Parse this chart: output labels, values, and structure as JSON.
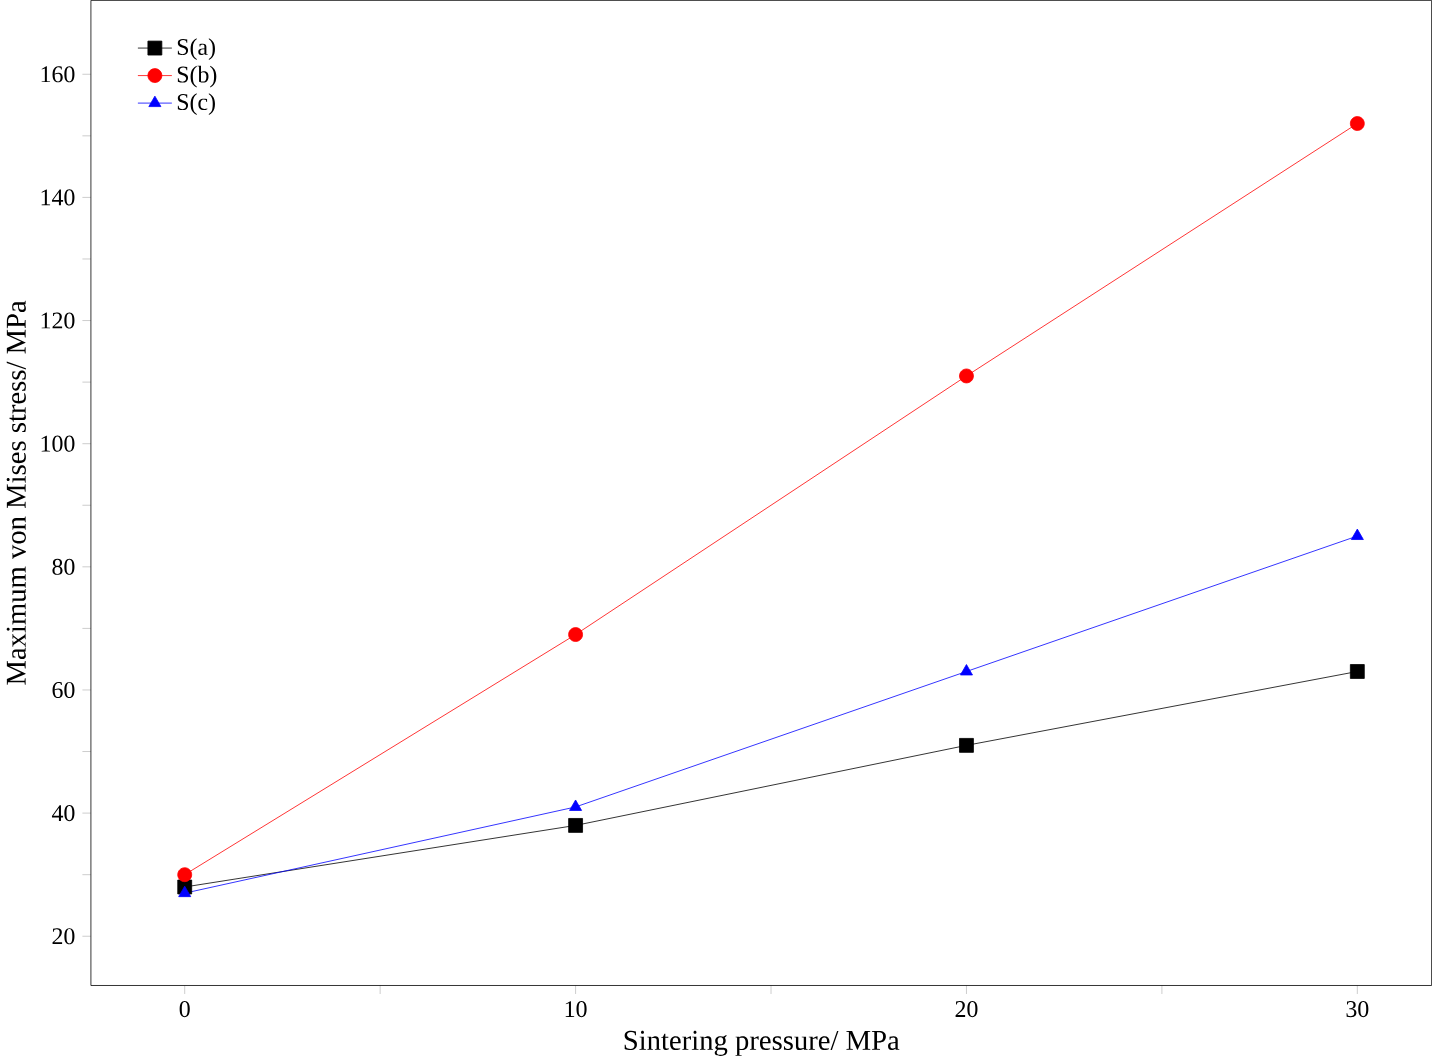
{
  "chart_data": {
    "type": "line",
    "xlabel": "Sintering pressure/ MPa",
    "ylabel": "Maximum von Mises stress/ MPa",
    "x": [
      0,
      10,
      20,
      30
    ],
    "series": [
      {
        "name": "S(a)",
        "color": "#000000",
        "values": [
          28,
          38,
          51,
          63
        ],
        "marker": "square"
      },
      {
        "name": "S(b)",
        "color": "#ff0000",
        "values": [
          30,
          69,
          111,
          152
        ],
        "marker": "circle"
      },
      {
        "name": "S(c)",
        "color": "#0000ff",
        "values": [
          27,
          41,
          63,
          85
        ],
        "marker": "triangle"
      }
    ],
    "xlim": [
      -2.4,
      31.9
    ],
    "ylim": [
      12,
      172
    ],
    "xticks": [
      0,
      {
        "value": 5,
        "label": null
      },
      10,
      {
        "value": 15,
        "label": null
      },
      20,
      {
        "value": 25,
        "label": null
      },
      30
    ],
    "yticks": [
      20,
      {
        "value": 30,
        "label": null
      },
      40,
      {
        "value": 50,
        "label": null
      },
      60,
      {
        "value": 70,
        "label": null
      },
      80,
      {
        "value": 90,
        "label": null
      },
      100,
      {
        "value": 110,
        "label": null
      },
      120,
      {
        "value": 130,
        "label": null
      },
      140,
      {
        "value": 150,
        "label": null
      },
      160
    ],
    "legend": "top left",
    "line_style": "solid",
    "grid": false
  }
}
